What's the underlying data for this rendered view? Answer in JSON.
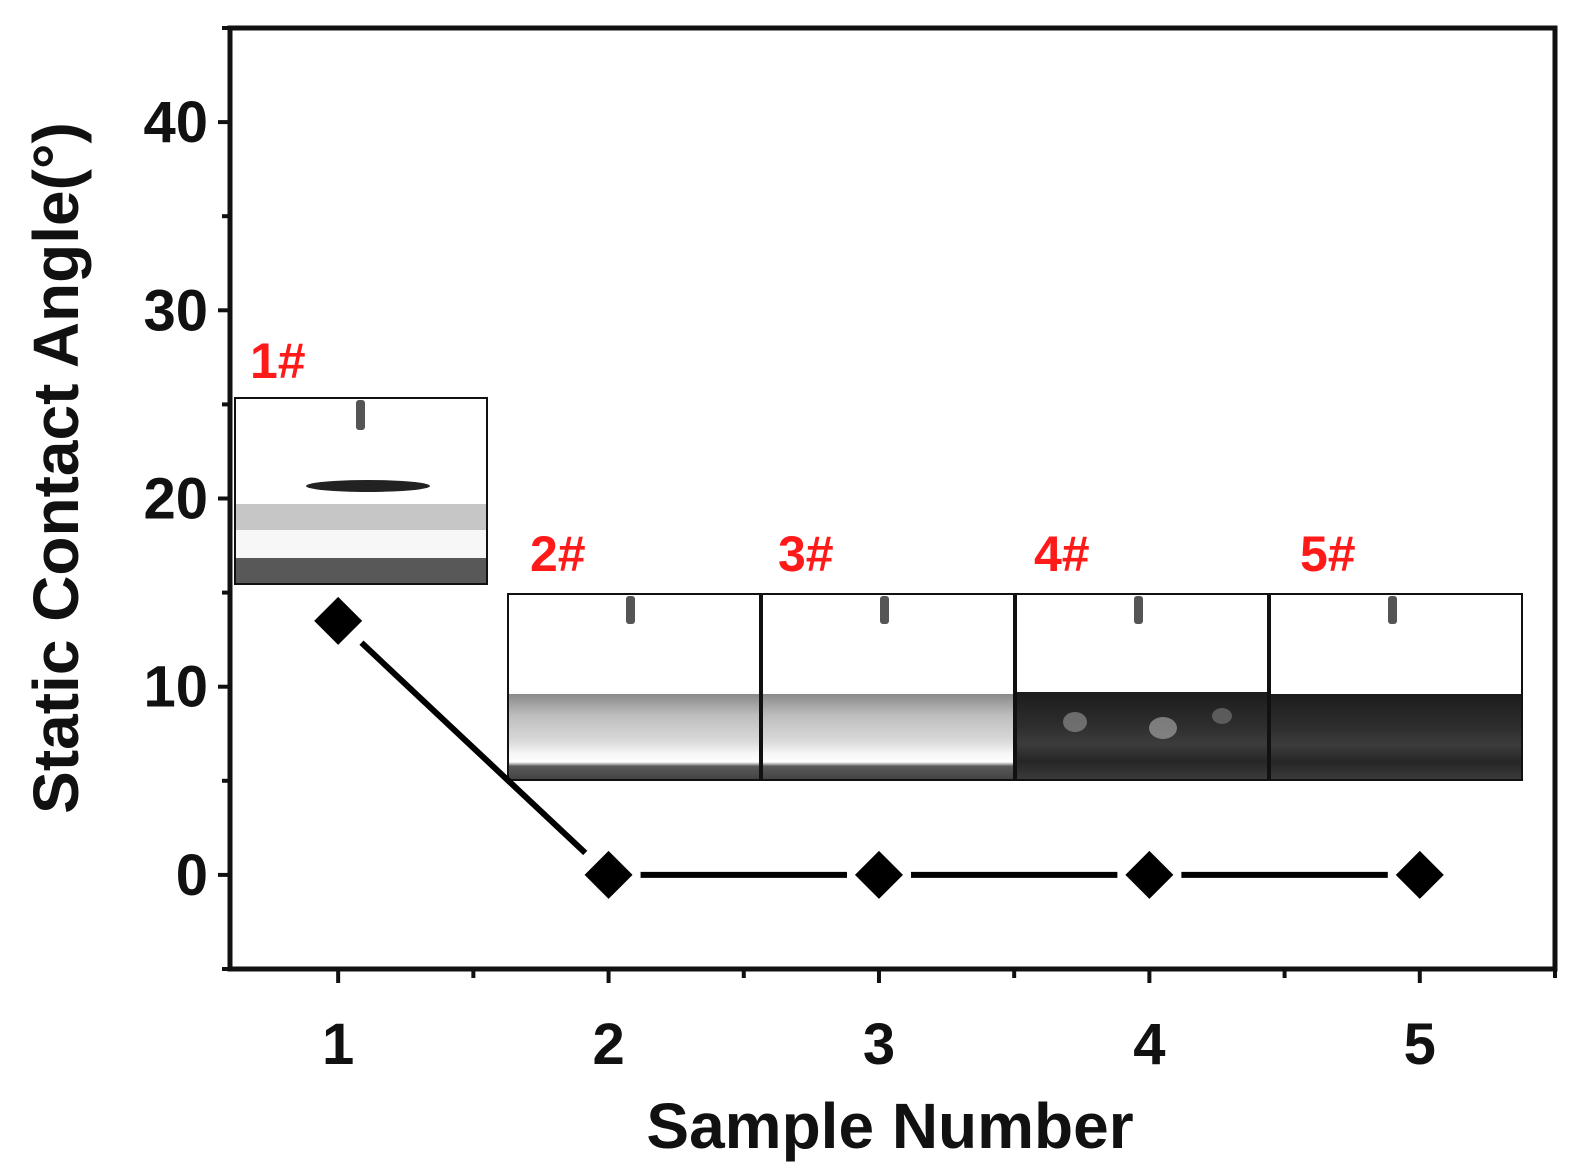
{
  "chart_data": {
    "type": "line",
    "xlabel": "Sample Number",
    "ylabel": "Static Contact Angle(°)",
    "x": [
      1,
      2,
      3,
      4,
      5
    ],
    "series": [
      {
        "values": [
          13.5,
          0,
          0,
          0,
          0
        ],
        "marker": "diamond",
        "color": "#000000"
      }
    ],
    "xlim": [
      0.6,
      5.5
    ],
    "ylim": [
      -5,
      45
    ],
    "xticks": [
      "1",
      "2",
      "3",
      "4",
      "5"
    ],
    "yticks": [
      "0",
      "10",
      "20",
      "30",
      "40"
    ],
    "grid": false,
    "legend": "none",
    "annotations": [
      "1#",
      "2#",
      "3#",
      "4#",
      "5#"
    ],
    "annotation_color": "#ff1a1a"
  }
}
